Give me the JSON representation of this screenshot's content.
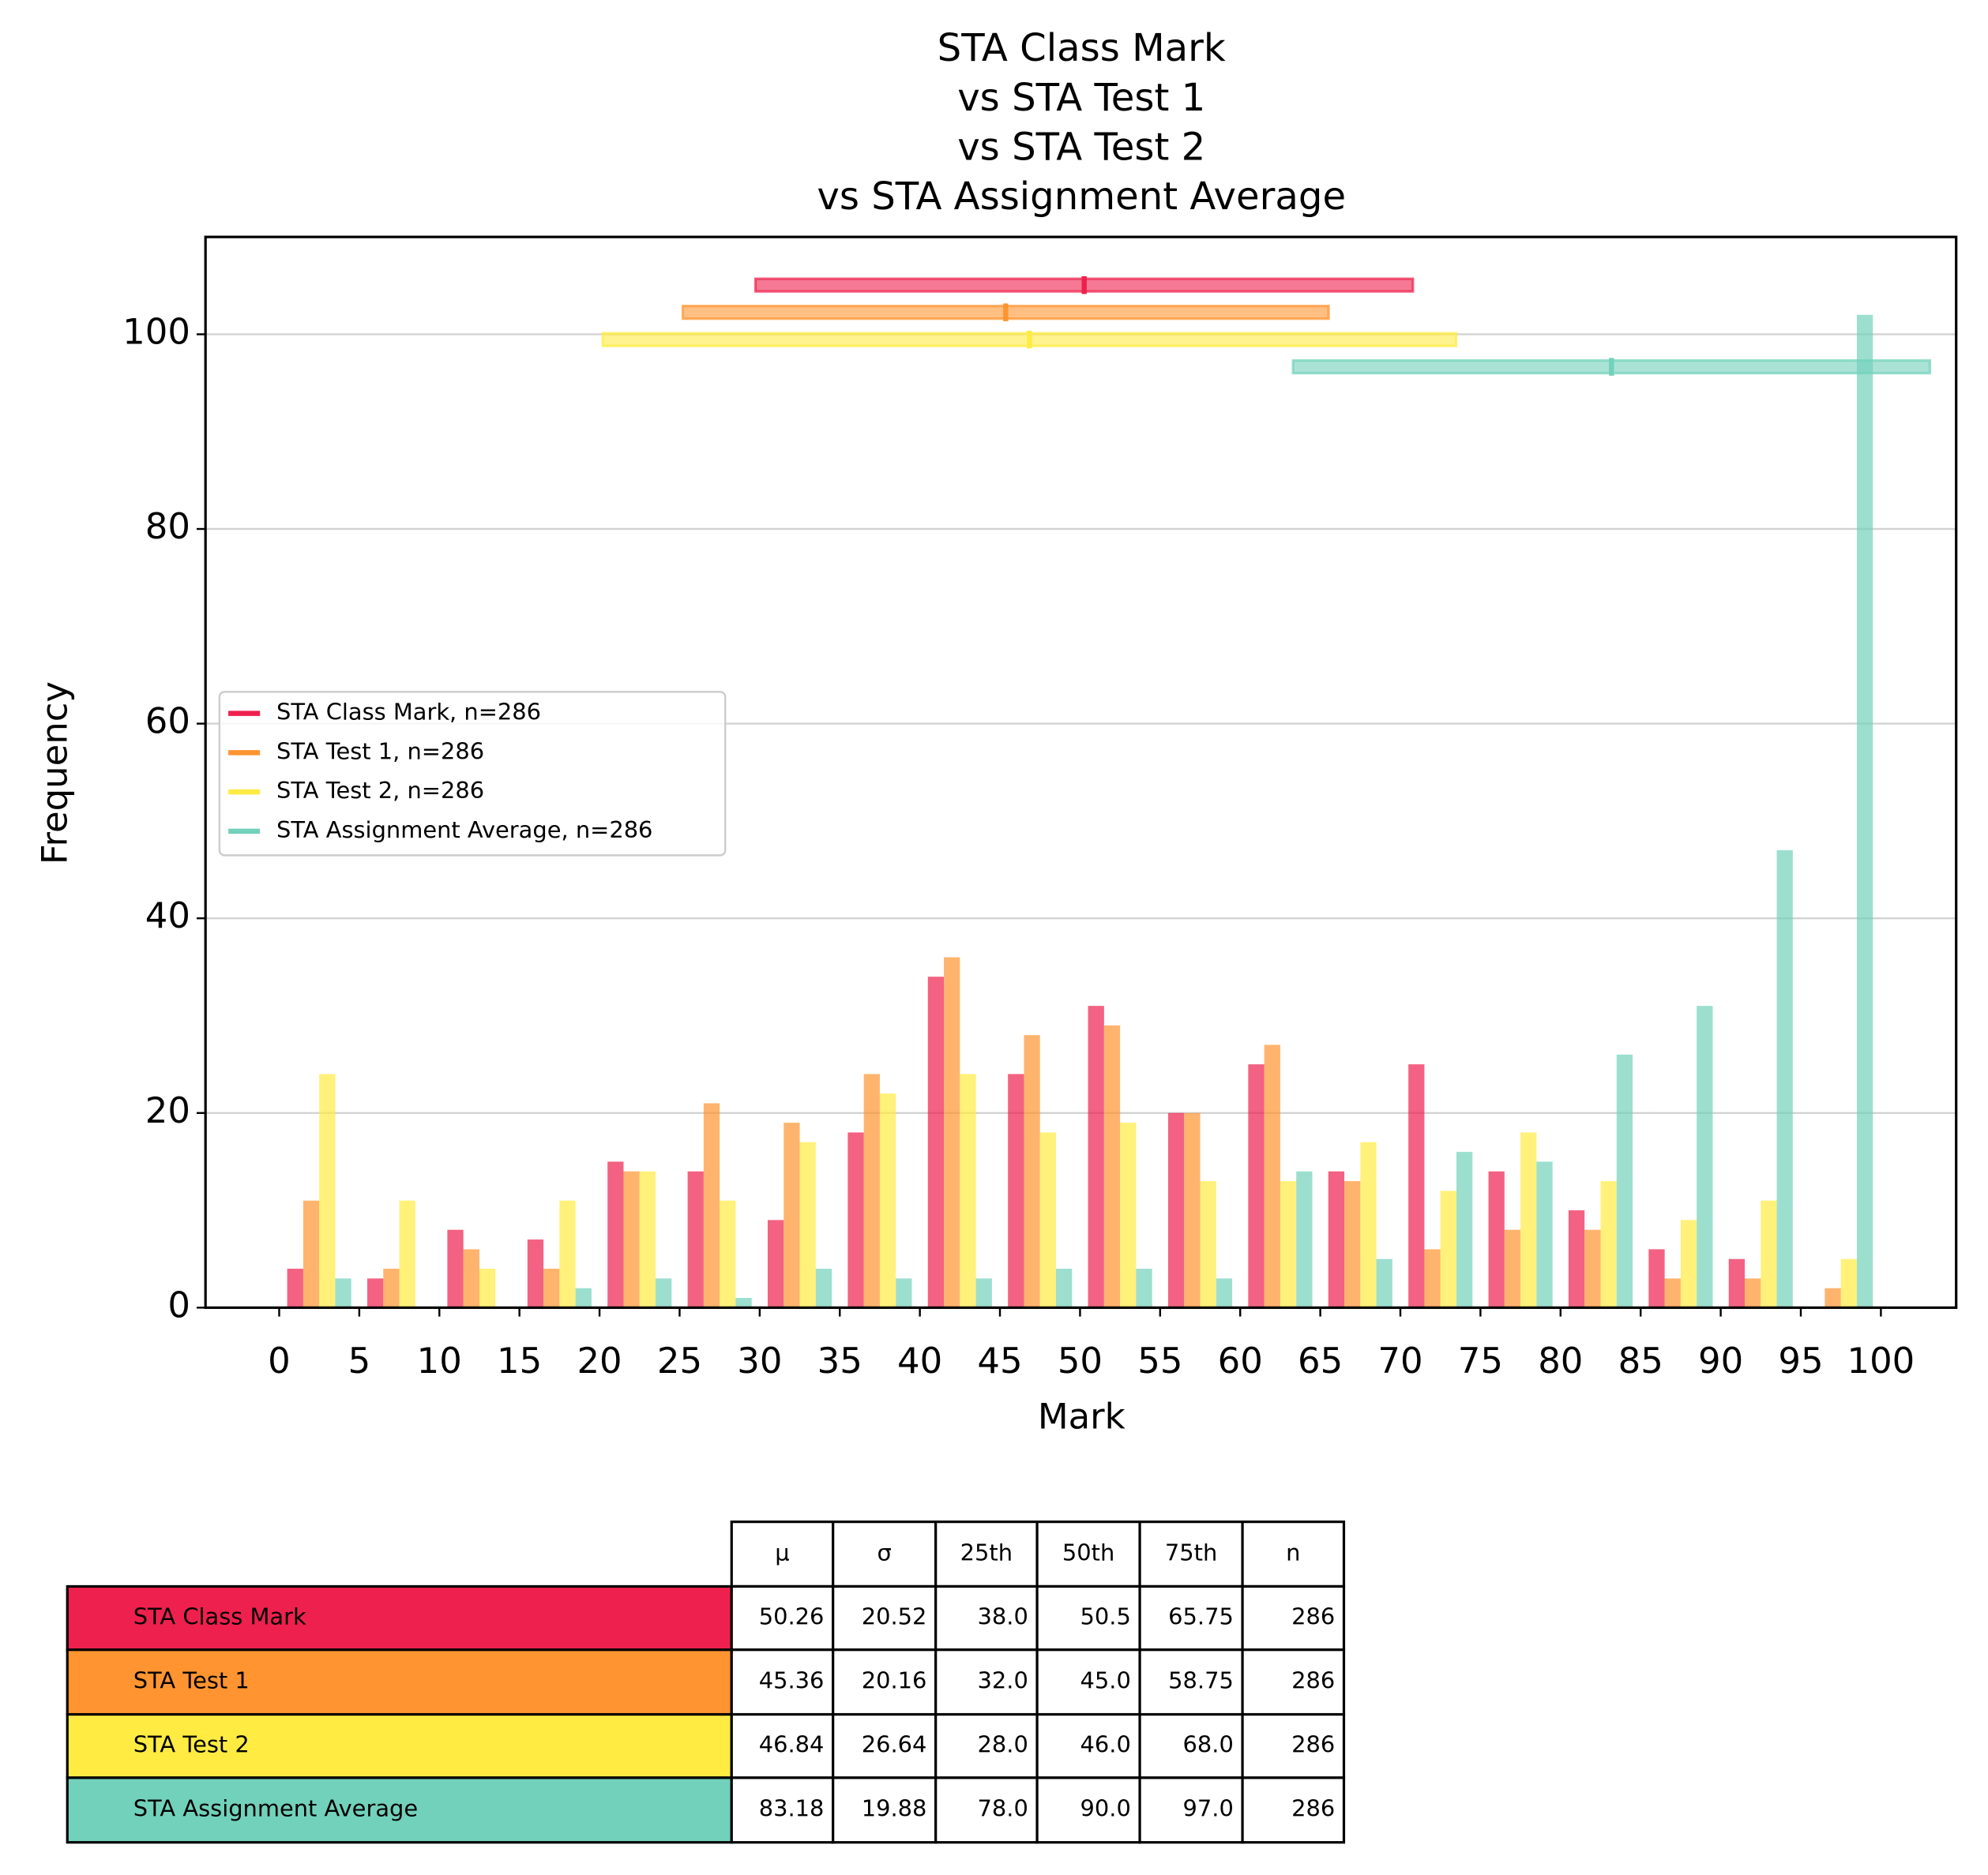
{
  "chart_data": {
    "type": "histogram",
    "title": [
      "STA Class Mark",
      "vs STA Test 1",
      "vs STA Test 2",
      "vs STA Assignment Average"
    ],
    "xlabel": "Mark",
    "ylabel": "Frequency",
    "bins": [
      0,
      5,
      10,
      15,
      20,
      25,
      30,
      35,
      40,
      45,
      50,
      55,
      60,
      65,
      70,
      75,
      80,
      85,
      90,
      95,
      100
    ],
    "series": [
      {
        "name": "STA Class Mark, n=286",
        "color": "#ee204d",
        "values": [
          4,
          3,
          8,
          7,
          15,
          14,
          9,
          18,
          34,
          24,
          31,
          20,
          25,
          14,
          25,
          14,
          10,
          6,
          5,
          0
        ]
      },
      {
        "name": "STA Test 1, n=286",
        "color": "#ff9430",
        "values": [
          11,
          4,
          6,
          4,
          14,
          21,
          19,
          24,
          36,
          28,
          29,
          20,
          27,
          13,
          6,
          8,
          8,
          3,
          3,
          2
        ]
      },
      {
        "name": "STA Test 2, n=286",
        "color": "#ffeb42",
        "values": [
          24,
          11,
          4,
          11,
          14,
          11,
          17,
          22,
          24,
          18,
          19,
          13,
          13,
          17,
          12,
          18,
          13,
          9,
          11,
          5
        ]
      },
      {
        "name": "STA Assignment Average, n=286",
        "color": "#72d1bb",
        "values": [
          3,
          0,
          0,
          2,
          3,
          1,
          4,
          3,
          3,
          4,
          4,
          3,
          14,
          5,
          16,
          15,
          26,
          31,
          47,
          102
        ]
      }
    ],
    "xlim": [
      -4.6,
      104.7
    ],
    "ylim": [
      0,
      110
    ],
    "xticks": [
      0,
      5,
      10,
      15,
      20,
      25,
      30,
      35,
      40,
      45,
      50,
      55,
      60,
      65,
      70,
      75,
      80,
      85,
      90,
      95,
      100
    ],
    "yticks": [
      0,
      20,
      40,
      60,
      80,
      100
    ],
    "grid": true,
    "legend": "center left"
  },
  "table": {
    "columns": [
      "μ",
      "σ",
      "25th",
      "50th",
      "75th",
      "n"
    ],
    "rows": [
      {
        "label": "STA Class Mark",
        "cells": [
          "50.26",
          "20.52",
          "38.0",
          "50.5",
          "65.75",
          "286"
        ]
      },
      {
        "label": "STA Test 1",
        "cells": [
          "45.36",
          "20.16",
          "32.0",
          "45.0",
          "58.75",
          "286"
        ]
      },
      {
        "label": "STA Test 2",
        "cells": [
          "46.84",
          "26.64",
          "28.0",
          "46.0",
          "68.0",
          "286"
        ]
      },
      {
        "label": "STA Assignment Average",
        "cells": [
          "83.18",
          "19.88",
          "78.0",
          "90.0",
          "97.0",
          "286"
        ]
      }
    ]
  }
}
